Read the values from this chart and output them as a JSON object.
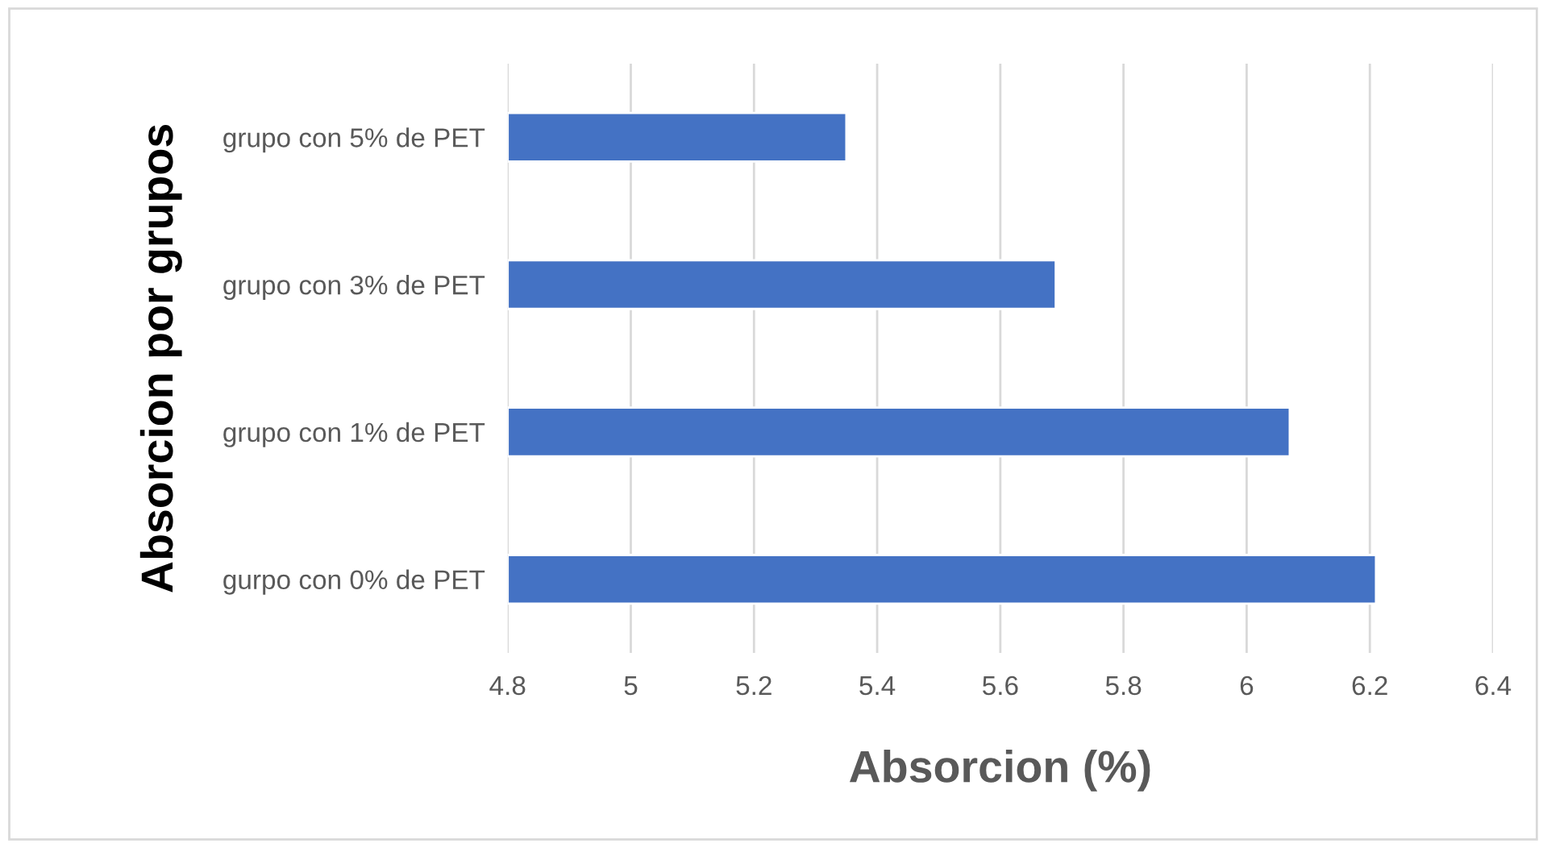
{
  "chart_data": {
    "type": "bar",
    "orientation": "horizontal",
    "xlabel": "Absorcion (%)",
    "ylabel": "Absorcion por grupos",
    "categories": [
      "grupo con 5% de PET",
      "grupo con 3% de PET",
      "grupo con 1% de PET",
      "gurpo con 0% de PET"
    ],
    "values": [
      5.35,
      5.69,
      6.07,
      6.21
    ],
    "color": "#4472c4",
    "xlim": [
      4.8,
      6.4
    ],
    "xticks": [
      4.8,
      5,
      5.2,
      5.4,
      5.6,
      5.8,
      6,
      6.2,
      6.4
    ],
    "grid": "x",
    "legend": false
  }
}
